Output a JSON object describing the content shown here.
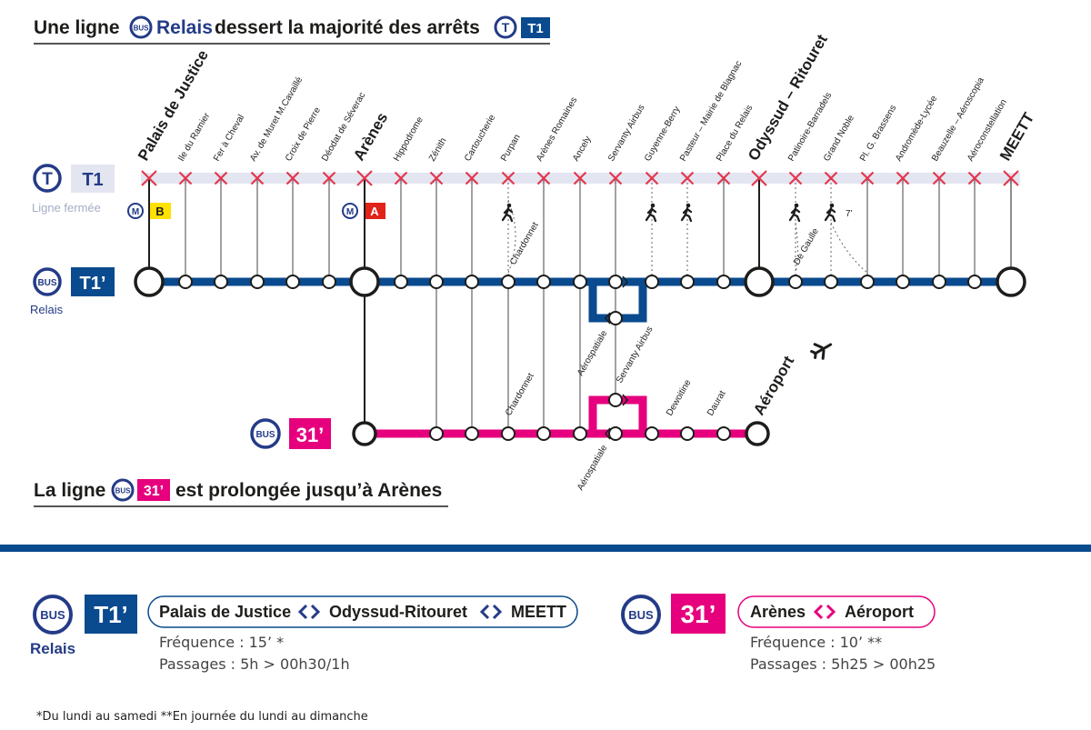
{
  "colors": {
    "navy": "#0a4a8e",
    "pink": "#e6007e",
    "tram_bg": "#e3e6f1",
    "red_x": "#e4374e",
    "dark": "#1d1d1b",
    "metro_b": "#ffe100",
    "metro_a": "#e2231a",
    "label_blue": "#243b87",
    "tram_gray": "#a7acc4"
  },
  "heading_top": {
    "part1": "Une ligne",
    "part2": "Relais",
    "part3": "dessert la majorité des arrêts"
  },
  "badges": {
    "tram_circle": "T",
    "t1": "T1",
    "t1prime": "T1’",
    "bus": "BUS",
    "l31": "31’",
    "metro": "M",
    "metro_b": "B",
    "metro_a": "A"
  },
  "tram_closed": "Ligne fermée",
  "relais": "Relais",
  "stops": [
    "Palais de Justice",
    "Ile du Ramier",
    "Fer à Cheval",
    "Av. de Muret M.Cavaillé",
    "Croix de Pierre",
    "Déodat de Séverac",
    "Arènes",
    "Hippodrome",
    "Zénith",
    "Cartoucherie",
    "Purpan",
    "Arènes Romaines",
    "Ancely",
    "Servanty Airbus",
    "Guyenne-Berry",
    "Pasteur – Mairie de Blagnac",
    "Place du Relais",
    "Odyssud – Ritouret",
    "Patinoire-Barradels",
    "Grand Noble",
    "Pl. G. Brassens",
    "Andromède-Lycée",
    "Beauzelle – Aéroscopia",
    "Aéroconstellation",
    "MEETT"
  ],
  "walk_labels": {
    "chardonnet": "Chardonnet",
    "de_gaulle": "De Gaulle",
    "walk_time": "7’"
  },
  "line31_stops": {
    "chardonnet": "Chardonnet",
    "aerospatiale_top": "Aérospatiale",
    "servanty": "Servanty Airbus",
    "aerospatiale_bottom": "Aérospatiale",
    "dewoitine": "Dewoitine",
    "daurat": "Daurat",
    "aeroport": "Aéroport"
  },
  "heading_bottom": {
    "part1": "La ligne",
    "part2": "est prolongée jusqu’à Arènes"
  },
  "info_t1": {
    "route_a": "Palais de Justice",
    "route_b": "Odyssud-Ritouret",
    "route_c": "MEETT",
    "frequence": "Fréquence : 15’ *",
    "passages": "Passages : 5h > 00h30/1h"
  },
  "info_31": {
    "route_a": "Arènes",
    "route_b": "Aéroport",
    "frequence": "Fréquence : 10’ **",
    "passages": "Passages : 5h25 > 00h25"
  },
  "footnote": "*Du lundi au samedi **En journée du lundi au dimanche"
}
